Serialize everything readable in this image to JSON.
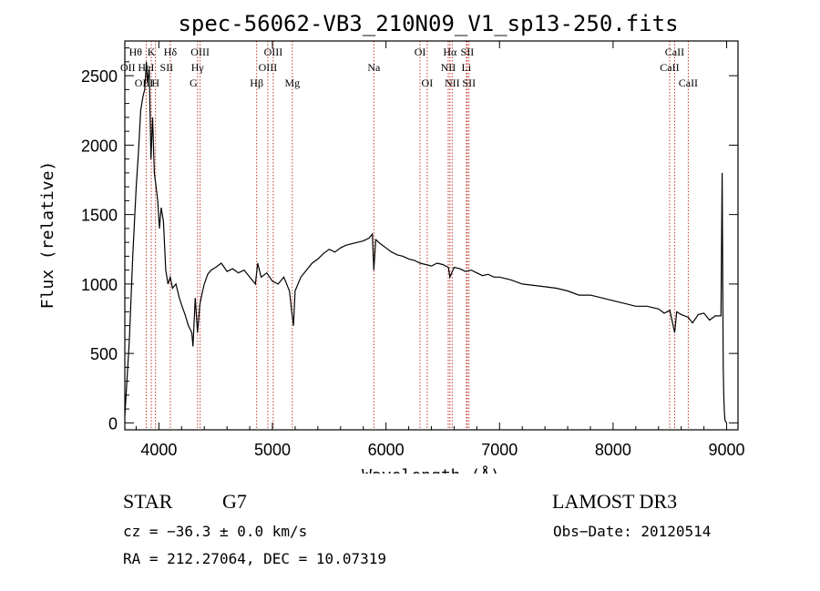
{
  "chart_data": {
    "type": "line",
    "title": "spec-56062-VB3_210N09_V1_sp13-250.fits",
    "xlabel": "Wavelength (Å)",
    "ylabel": "Flux (relative)",
    "xlim": [
      3700,
      9100
    ],
    "ylim": [
      -50,
      2750
    ],
    "x_ticks": [
      4000,
      5000,
      6000,
      7000,
      8000,
      9000
    ],
    "y_ticks": [
      0,
      500,
      1000,
      1500,
      2000,
      2500
    ],
    "series": [
      {
        "name": "flux",
        "color": "#000000",
        "x": [
          3700,
          3740,
          3770,
          3800,
          3820,
          3840,
          3860,
          3875,
          3890,
          3900,
          3915,
          3930,
          3945,
          3960,
          3975,
          3990,
          4005,
          4020,
          4040,
          4060,
          4080,
          4100,
          4120,
          4150,
          4180,
          4200,
          4230,
          4260,
          4290,
          4300,
          4320,
          4340,
          4360,
          4380,
          4400,
          4430,
          4460,
          4500,
          4550,
          4600,
          4650,
          4700,
          4750,
          4800,
          4850,
          4870,
          4900,
          4950,
          5000,
          5050,
          5100,
          5150,
          5170,
          5185,
          5200,
          5250,
          5300,
          5350,
          5400,
          5450,
          5500,
          5550,
          5600,
          5650,
          5700,
          5750,
          5800,
          5850,
          5880,
          5893,
          5910,
          5950,
          6000,
          6050,
          6100,
          6150,
          6200,
          6250,
          6300,
          6350,
          6400,
          6450,
          6500,
          6550,
          6563,
          6600,
          6650,
          6700,
          6750,
          6800,
          6850,
          6900,
          6950,
          7000,
          7100,
          7200,
          7300,
          7400,
          7500,
          7600,
          7700,
          7800,
          7900,
          8000,
          8100,
          8200,
          8300,
          8400,
          8450,
          8500,
          8542,
          8560,
          8600,
          8662,
          8700,
          8750,
          8800,
          8850,
          8900,
          8950,
          8960,
          8965,
          8970,
          8975,
          8980,
          8985,
          8990,
          8995,
          9000
        ],
        "values": [
          50,
          600,
          1200,
          1700,
          1950,
          2250,
          2350,
          2400,
          2600,
          2450,
          2550,
          1900,
          2200,
          1800,
          1700,
          1600,
          1400,
          1550,
          1450,
          1100,
          1000,
          1050,
          970,
          1000,
          900,
          850,
          780,
          700,
          650,
          550,
          900,
          650,
          850,
          930,
          1000,
          1070,
          1100,
          1120,
          1150,
          1090,
          1110,
          1080,
          1100,
          1050,
          1000,
          1150,
          1050,
          1080,
          1020,
          1000,
          1050,
          950,
          800,
          700,
          950,
          1050,
          1100,
          1150,
          1180,
          1220,
          1250,
          1230,
          1260,
          1280,
          1290,
          1300,
          1310,
          1330,
          1360,
          1100,
          1320,
          1290,
          1260,
          1230,
          1210,
          1200,
          1180,
          1170,
          1150,
          1140,
          1130,
          1150,
          1140,
          1120,
          1050,
          1120,
          1110,
          1090,
          1100,
          1080,
          1060,
          1070,
          1050,
          1050,
          1030,
          1000,
          990,
          980,
          970,
          950,
          920,
          920,
          900,
          880,
          860,
          840,
          840,
          820,
          790,
          810,
          650,
          800,
          780,
          760,
          720,
          780,
          790,
          740,
          770,
          770,
          1800,
          1100,
          400,
          200,
          80,
          20,
          10,
          5,
          2
        ]
      }
    ],
    "line_groups": [
      {
        "wavelengths": [
          3888,
          3933,
          3970,
          4101,
          4340,
          4363,
          4861,
          4959,
          5007,
          5175,
          5893,
          6300,
          6363,
          6548,
          6563,
          6583,
          6708,
          6716,
          6731,
          8498,
          8542,
          8662
        ]
      },
      {
        "labels": [
          {
            "text": "Hθ",
            "wl": 3795,
            "row": 1
          },
          {
            "text": "K",
            "wl": 3933,
            "row": 1
          },
          {
            "text": "Hδ",
            "wl": 4101,
            "row": 1
          },
          {
            "text": "OIII",
            "wl": 4363,
            "row": 1
          },
          {
            "text": "OIII",
            "wl": 5007,
            "row": 1
          },
          {
            "text": "OI",
            "wl": 6300,
            "row": 1
          },
          {
            "text": "Hα",
            "wl": 6563,
            "row": 1
          },
          {
            "text": "SII",
            "wl": 6716,
            "row": 1
          },
          {
            "text": "CaII",
            "wl": 8542,
            "row": 1
          },
          {
            "text": "OII",
            "wl": 3727,
            "row": 2
          },
          {
            "text": "HeI",
            "wl": 3888,
            "row": 2
          },
          {
            "text": "SII",
            "wl": 4068,
            "row": 2
          },
          {
            "text": "Hγ",
            "wl": 4340,
            "row": 2
          },
          {
            "text": "OIII",
            "wl": 4959,
            "row": 2
          },
          {
            "text": "Na",
            "wl": 5893,
            "row": 2
          },
          {
            "text": "NII",
            "wl": 6548,
            "row": 2
          },
          {
            "text": "Li",
            "wl": 6708,
            "row": 2
          },
          {
            "text": "CaII",
            "wl": 8498,
            "row": 2
          },
          {
            "text": "OIII",
            "wl": 3869,
            "row": 3
          },
          {
            "text": "H",
            "wl": 3970,
            "row": 3
          },
          {
            "text": "G",
            "wl": 4304,
            "row": 3
          },
          {
            "text": "Hβ",
            "wl": 4861,
            "row": 3
          },
          {
            "text": "Mg",
            "wl": 5175,
            "row": 3
          },
          {
            "text": "OI",
            "wl": 6363,
            "row": 3
          },
          {
            "text": "NII",
            "wl": 6583,
            "row": 3
          },
          {
            "text": "SII",
            "wl": 6731,
            "row": 3
          },
          {
            "text": "CaII",
            "wl": 8662,
            "row": 3
          }
        ]
      }
    ]
  },
  "info": {
    "class": "STAR",
    "subclass": "G7",
    "survey": "LAMOST DR3",
    "cz": "cz = −36.3 ± 0.0 km/s",
    "obs_date": "Obs−Date: 20120514",
    "radec": "RA = 212.27064, DEC =  10.07319"
  }
}
